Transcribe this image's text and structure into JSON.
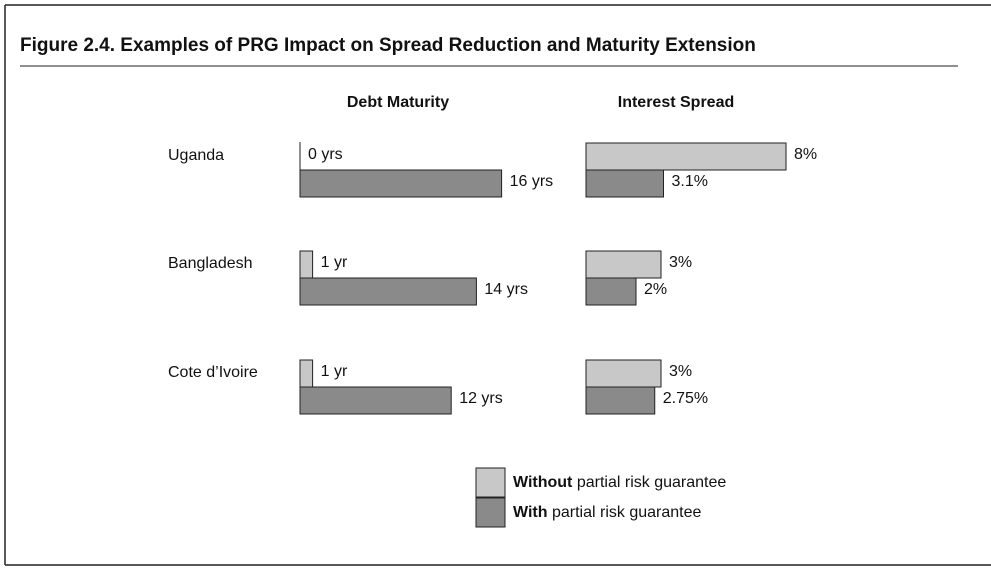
{
  "title": "Figure 2.4.  Examples of PRG Impact on Spread Reduction and Maturity Extension",
  "chart_data": {
    "type": "bar",
    "categories": [
      "Uganda",
      "Bangladesh",
      "Cote d’Ivoire"
    ],
    "legend": [
      {
        "name": "Without partial risk guarantee",
        "color": "#c8c8c8"
      },
      {
        "name": "With partial risk guarantee",
        "color": "#8a8a8a"
      }
    ],
    "panels": [
      {
        "title": "Debt Maturity",
        "series": [
          {
            "values": [
              0,
              1,
              1
            ],
            "value_labels": [
              "0 yrs",
              "1 yr",
              "1 yr"
            ]
          },
          {
            "values": [
              16,
              14,
              12
            ],
            "value_labels": [
              "16 yrs",
              "14 yrs",
              "12 yrs"
            ]
          }
        ]
      },
      {
        "title": "Interest Spread",
        "series": [
          {
            "values": [
              8,
              3,
              3
            ],
            "value_labels": [
              "8%",
              "3%",
              "3%"
            ]
          },
          {
            "values": [
              3.1,
              2,
              2.75
            ],
            "value_labels": [
              "3.1%",
              "2%",
              "2.75%"
            ]
          }
        ]
      }
    ]
  }
}
